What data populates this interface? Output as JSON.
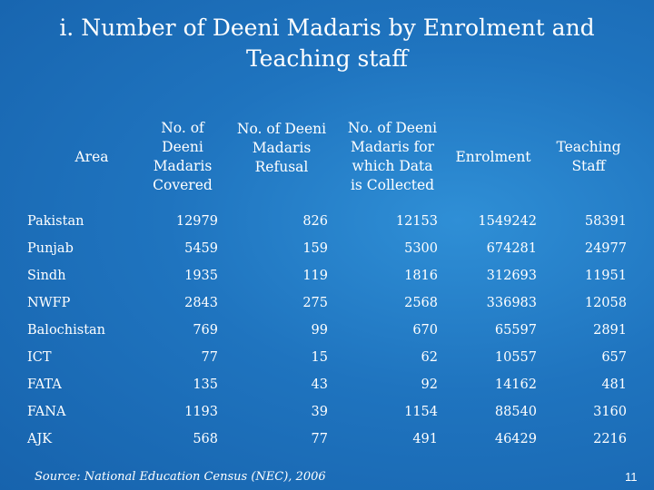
{
  "title": {
    "line1": "i. Number of Deeni Madaris by Enrolment and",
    "line2": "Teaching staff"
  },
  "columns": [
    {
      "id": "area",
      "lines": [
        "Area"
      ]
    },
    {
      "id": "covered",
      "lines": [
        "No. of",
        "Deeni",
        "Madaris",
        "Covered"
      ]
    },
    {
      "id": "refusal",
      "lines": [
        "No. of Deeni",
        "Madaris",
        "Refusal"
      ]
    },
    {
      "id": "collected",
      "lines": [
        "No. of Deeni",
        "Madaris  for",
        "which Data",
        "is Collected"
      ]
    },
    {
      "id": "enrolment",
      "lines": [
        "Enrolment"
      ]
    },
    {
      "id": "staff",
      "lines": [
        "Teaching",
        "Staff"
      ]
    }
  ],
  "rows": [
    {
      "area": "Pakistan",
      "covered": "12979",
      "refusal": "826",
      "collected": "12153",
      "enrolment": "1549242",
      "staff": "58391"
    },
    {
      "area": "Punjab",
      "covered": "5459",
      "refusal": "159",
      "collected": "5300",
      "enrolment": "674281",
      "staff": "24977"
    },
    {
      "area": "Sindh",
      "covered": "1935",
      "refusal": "119",
      "collected": "1816",
      "enrolment": "312693",
      "staff": "11951"
    },
    {
      "area": "NWFP",
      "covered": "2843",
      "refusal": "275",
      "collected": "2568",
      "enrolment": "336983",
      "staff": "12058"
    },
    {
      "area": "Balochistan",
      "covered": "769",
      "refusal": "99",
      "collected": "670",
      "enrolment": "65597",
      "staff": "2891"
    },
    {
      "area": "ICT",
      "covered": "77",
      "refusal": "15",
      "collected": "62",
      "enrolment": "10557",
      "staff": "657"
    },
    {
      "area": "FATA",
      "covered": "135",
      "refusal": "43",
      "collected": "92",
      "enrolment": "14162",
      "staff": "481"
    },
    {
      "area": "FANA",
      "covered": "1193",
      "refusal": "39",
      "collected": "1154",
      "enrolment": "88540",
      "staff": "3160"
    },
    {
      "area": "AJK",
      "covered": "568",
      "refusal": "77",
      "collected": "491",
      "enrolment": "46429",
      "staff": "2216"
    }
  ],
  "source": "Source:  National Education Census (NEC), 2006",
  "page_number": "11"
}
